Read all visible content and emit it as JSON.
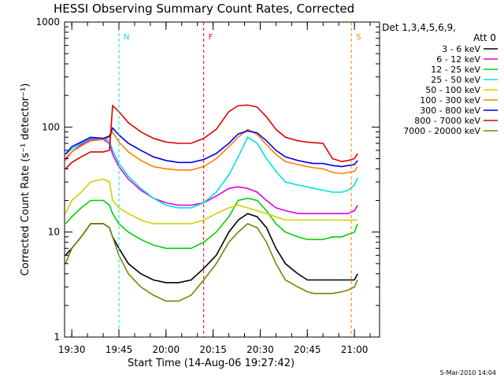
{
  "chart_data": {
    "type": "line",
    "title": "HESSI Observing Summary Count Rates, Corrected",
    "xlabel": "Start Time (14-Aug-06 19:27:42)",
    "ylabel": "Corrected Count Rate (s⁻¹ detector⁻¹)",
    "y_scale": "log",
    "ylim": [
      1,
      1000
    ],
    "xlim": [
      "19:27:42",
      "21:08"
    ],
    "x_tick_labels": [
      "19:30",
      "19:45",
      "20:00",
      "20:15",
      "20:30",
      "20:45",
      "21:00"
    ],
    "x_tick_values": [
      "19:30",
      "19:45",
      "20:00",
      "20:15",
      "20:30",
      "20:45",
      "21:00"
    ],
    "y_tick_labels": [
      "1",
      "10",
      "100",
      "1000"
    ],
    "y_tick_values": [
      1,
      10,
      100,
      1000
    ],
    "legend_header_1": "Det 1,3,4,5,6,9,",
    "legend_header_2": "Att 0",
    "legend_placement": "right",
    "x": [
      "19:28",
      "19:30",
      "19:33",
      "19:36",
      "19:40",
      "19:42",
      "19:43",
      "19:45",
      "19:48",
      "19:52",
      "19:56",
      "20:00",
      "20:04",
      "20:08",
      "20:12",
      "20:16",
      "20:20",
      "20:23",
      "20:26",
      "20:29",
      "20:32",
      "20:35",
      "20:38",
      "20:42",
      "20:45",
      "20:47",
      "20:50",
      "20:53",
      "20:56",
      "20:58",
      "21:00",
      "21:01"
    ],
    "series": [
      {
        "name": "3 - 6 keV",
        "color": "#000000",
        "values": [
          6,
          7,
          9,
          12,
          12,
          11,
          9,
          7,
          5,
          4,
          3.5,
          3.3,
          3.3,
          3.5,
          4.5,
          6,
          10,
          13,
          15,
          14,
          11,
          7,
          5,
          4,
          3.5,
          3.5,
          3.5,
          3.5,
          3.5,
          3.5,
          3.5,
          4
        ]
      },
      {
        "name": "6 - 12 keV",
        "color": "#e000e0",
        "values": [
          50,
          58,
          68,
          76,
          76,
          70,
          55,
          42,
          32,
          25,
          21,
          19,
          18,
          18,
          19,
          22,
          26,
          27,
          26,
          24,
          20,
          17,
          16,
          15,
          15,
          15,
          15,
          15,
          15,
          15,
          16,
          18
        ]
      },
      {
        "name": "12 - 25 keV",
        "color": "#00d000",
        "values": [
          12,
          14,
          17,
          20,
          20,
          18,
          15,
          12,
          10,
          8.5,
          7.5,
          7,
          7,
          7,
          8,
          10,
          14,
          20,
          21,
          20,
          16,
          12,
          10,
          9,
          8.5,
          8.5,
          8.5,
          9,
          9,
          9.5,
          10,
          12
        ]
      },
      {
        "name": "25 - 50 keV",
        "color": "#00e0e0",
        "values": [
          55,
          62,
          70,
          78,
          78,
          74,
          60,
          45,
          34,
          26,
          21,
          18,
          17,
          17,
          19,
          24,
          35,
          52,
          80,
          70,
          50,
          38,
          30,
          28,
          27,
          26,
          25,
          24,
          24,
          25,
          28,
          33
        ]
      },
      {
        "name": "50 - 100 keV",
        "color": "#d0d000",
        "values": [
          15,
          20,
          24,
          30,
          32,
          30,
          20,
          17,
          15,
          13,
          12,
          12,
          12,
          12,
          13,
          15,
          17,
          18,
          17,
          16,
          15,
          14,
          13,
          13,
          13,
          13,
          13,
          13,
          13,
          13,
          13,
          13
        ]
      },
      {
        "name": "100 - 300 keV",
        "color": "#ff8000",
        "values": [
          48,
          58,
          66,
          74,
          76,
          80,
          90,
          72,
          58,
          48,
          42,
          40,
          39,
          39,
          42,
          50,
          65,
          80,
          95,
          85,
          68,
          55,
          47,
          44,
          42,
          41,
          40,
          37,
          36,
          37,
          38,
          42
        ]
      },
      {
        "name": "300 - 800 keV",
        "color": "#0000e0",
        "values": [
          55,
          65,
          72,
          80,
          78,
          82,
          98,
          84,
          70,
          60,
          52,
          48,
          46,
          46,
          49,
          56,
          70,
          86,
          92,
          88,
          74,
          60,
          52,
          48,
          46,
          45,
          45,
          43,
          42,
          43,
          44,
          48
        ]
      },
      {
        "name": "800 - 7000 keV",
        "color": "#e00000",
        "values": [
          40,
          46,
          52,
          58,
          58,
          60,
          160,
          140,
          110,
          90,
          78,
          72,
          70,
          70,
          78,
          95,
          140,
          160,
          162,
          155,
          125,
          95,
          80,
          74,
          72,
          71,
          70,
          50,
          47,
          48,
          50,
          56
        ]
      },
      {
        "name": "7000 - 20000 keV",
        "color": "#808000",
        "values": [
          5,
          7,
          9,
          12,
          12,
          11,
          9,
          6,
          4,
          3,
          2.5,
          2.2,
          2.2,
          2.5,
          3.5,
          5,
          8,
          10,
          12,
          11,
          8,
          5,
          3.5,
          3,
          2.7,
          2.6,
          2.6,
          2.6,
          2.7,
          2.8,
          3,
          3.5
        ]
      }
    ],
    "annotations": [
      {
        "text": "N",
        "color": "#00e0e0",
        "x": "19:45"
      },
      {
        "text": "F",
        "color": "#ff0000",
        "x": "20:12"
      },
      {
        "text": "S",
        "color": "#ff8000",
        "x": "20:59"
      }
    ],
    "footer_date": "5-Mar-2010 14:04"
  }
}
